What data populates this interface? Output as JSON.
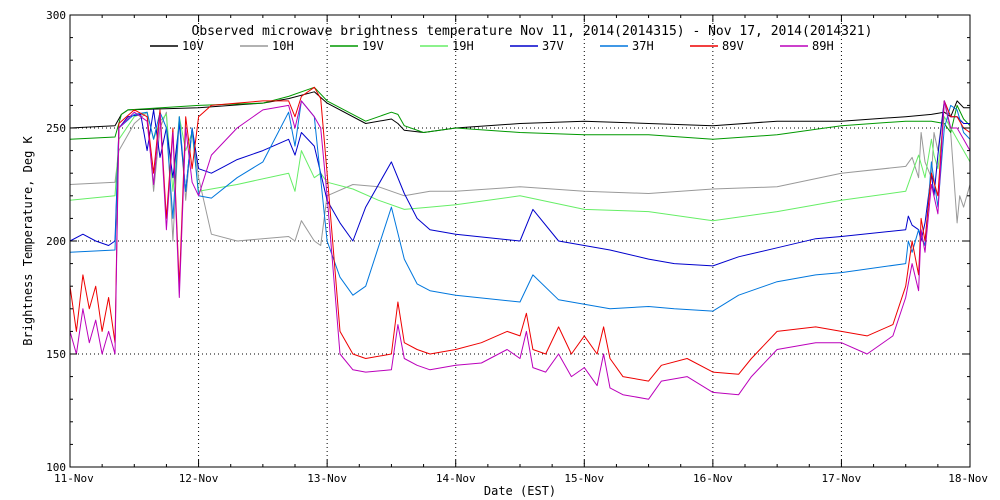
{
  "chart_data": {
    "type": "line",
    "title": "Observed microwave brightness temperature Nov 11, 2014(2014315) - Nov 17, 2014(2014321)",
    "xlabel": "Date (EST)",
    "ylabel": "Brightness Temperature, Deg K",
    "ylim": [
      100,
      300
    ],
    "yticks": [
      "100",
      "150",
      "200",
      "250",
      "300"
    ],
    "xlim": [
      0,
      7
    ],
    "xticks": [
      "11-Nov",
      "12-Nov",
      "13-Nov",
      "14-Nov",
      "15-Nov",
      "16-Nov",
      "17-Nov",
      "18-Nov"
    ],
    "grid": "dotted",
    "legend_position": "top",
    "series": [
      {
        "name": "10V",
        "color": "#000000",
        "x": [
          0,
          0.35,
          0.4,
          0.45,
          1.0,
          1.5,
          1.7,
          1.9,
          2.0,
          2.3,
          2.5,
          2.55,
          2.6,
          2.75,
          3.0,
          3.5,
          4.0,
          4.5,
          5.0,
          5.5,
          6.0,
          6.5,
          6.7,
          6.8,
          6.85,
          6.9,
          6.95,
          7.0
        ],
        "y": [
          250,
          251,
          256,
          258,
          259,
          261,
          263,
          266,
          261,
          252,
          254,
          252,
          249,
          248,
          250,
          252,
          253,
          252,
          251,
          253,
          253,
          255,
          256,
          257,
          255,
          262,
          259,
          259
        ]
      },
      {
        "name": "10H",
        "color": "#999999",
        "x": [
          0,
          0.35,
          0.38,
          0.5,
          0.6,
          0.65,
          0.7,
          0.75,
          0.8,
          0.85,
          0.9,
          0.95,
          1.0,
          1.1,
          1.3,
          1.7,
          1.75,
          1.8,
          1.9,
          1.95,
          2.0,
          2.2,
          2.4,
          2.6,
          2.8,
          3.0,
          3.5,
          4.0,
          4.5,
          5.0,
          5.5,
          6.0,
          6.5,
          6.55,
          6.6,
          6.62,
          6.65,
          6.7,
          6.72,
          6.75,
          6.8,
          6.85,
          6.9,
          6.92,
          6.95,
          7.0
        ],
        "y": [
          225,
          226,
          240,
          252,
          257,
          222,
          250,
          257,
          200,
          255,
          218,
          250,
          228,
          203,
          200,
          202,
          200,
          209,
          200,
          198,
          220,
          225,
          224,
          220,
          222,
          222,
          224,
          222,
          221,
          223,
          224,
          230,
          233,
          237,
          228,
          248,
          235,
          228,
          248,
          240,
          262,
          248,
          208,
          220,
          215,
          225
        ]
      },
      {
        "name": "19V",
        "color": "#009900",
        "x": [
          0,
          0.35,
          0.4,
          0.45,
          1.0,
          1.5,
          1.7,
          1.9,
          2.0,
          2.3,
          2.5,
          2.55,
          2.6,
          2.75,
          3.0,
          3.5,
          4.0,
          4.5,
          5.0,
          5.5,
          6.0,
          6.5,
          6.7,
          6.8,
          6.85,
          6.9,
          6.95,
          7.0
        ],
        "y": [
          245,
          246,
          256,
          258,
          260,
          261,
          264,
          268,
          262,
          253,
          257,
          256,
          251,
          248,
          250,
          248,
          247,
          247,
          245,
          247,
          251,
          253,
          253,
          252,
          248,
          260,
          254,
          251
        ]
      },
      {
        "name": "19H",
        "color": "#66ee66",
        "x": [
          0,
          0.35,
          0.38,
          0.5,
          0.6,
          0.65,
          0.7,
          0.75,
          0.8,
          0.85,
          0.9,
          0.95,
          1.0,
          1.3,
          1.7,
          1.75,
          1.8,
          1.9,
          1.95,
          2.0,
          2.2,
          2.4,
          2.6,
          2.8,
          3.0,
          3.5,
          4.0,
          4.5,
          5.0,
          5.5,
          6.0,
          6.5,
          6.55,
          6.6,
          6.65,
          6.7,
          6.72,
          6.75,
          6.8,
          6.85,
          6.9,
          6.95,
          7.0
        ],
        "y": [
          218,
          220,
          245,
          255,
          257,
          245,
          253,
          256,
          222,
          255,
          240,
          248,
          222,
          225,
          230,
          222,
          240,
          228,
          230,
          226,
          223,
          218,
          214,
          215,
          216,
          220,
          214,
          213,
          209,
          213,
          218,
          222,
          230,
          238,
          228,
          245,
          238,
          232,
          255,
          250,
          245,
          240,
          235
        ]
      },
      {
        "name": "37V",
        "color": "#0000cc",
        "x": [
          0,
          0.1,
          0.2,
          0.3,
          0.35,
          0.38,
          0.45,
          0.55,
          0.6,
          0.65,
          0.7,
          0.75,
          0.8,
          0.85,
          0.9,
          0.95,
          1.0,
          1.1,
          1.2,
          1.3,
          1.5,
          1.7,
          1.75,
          1.8,
          1.9,
          2.0,
          2.1,
          2.2,
          2.3,
          2.5,
          2.6,
          2.7,
          2.8,
          2.9,
          3.0,
          3.5,
          3.6,
          3.8,
          4.0,
          4.2,
          4.5,
          4.7,
          5.0,
          5.2,
          5.5,
          5.8,
          6.0,
          6.5,
          6.52,
          6.55,
          6.6,
          6.62,
          6.65,
          6.7,
          6.72,
          6.75,
          6.8,
          6.85,
          6.9,
          6.95,
          7.0
        ],
        "y": [
          200,
          203,
          200,
          198,
          200,
          250,
          255,
          256,
          240,
          258,
          237,
          250,
          228,
          252,
          222,
          250,
          232,
          230,
          233,
          236,
          240,
          245,
          238,
          248,
          242,
          218,
          208,
          200,
          215,
          235,
          221,
          210,
          205,
          204,
          203,
          200,
          214,
          200,
          198,
          196,
          192,
          190,
          189,
          193,
          197,
          201,
          202,
          205,
          211,
          207,
          205,
          200,
          208,
          230,
          220,
          238,
          262,
          255,
          255,
          252,
          252
        ]
      },
      {
        "name": "37H",
        "color": "#0077dd",
        "x": [
          0,
          0.35,
          0.38,
          0.5,
          0.6,
          0.65,
          0.7,
          0.75,
          0.8,
          0.85,
          0.9,
          0.95,
          1.0,
          1.1,
          1.3,
          1.5,
          1.7,
          1.75,
          1.8,
          1.9,
          2.0,
          2.1,
          2.2,
          2.3,
          2.5,
          2.6,
          2.7,
          2.8,
          3.0,
          3.5,
          3.6,
          3.8,
          4.0,
          4.2,
          4.5,
          4.7,
          5.0,
          5.2,
          5.5,
          5.8,
          6.0,
          6.5,
          6.52,
          6.55,
          6.6,
          6.65,
          6.7,
          6.75,
          6.8,
          6.85,
          6.9,
          6.95,
          7.0
        ],
        "y": [
          195,
          196,
          250,
          256,
          257,
          245,
          257,
          250,
          210,
          255,
          222,
          250,
          220,
          219,
          228,
          235,
          257,
          242,
          262,
          255,
          200,
          184,
          176,
          180,
          215,
          192,
          181,
          178,
          176,
          173,
          185,
          174,
          172,
          170,
          171,
          170,
          169,
          176,
          182,
          185,
          186,
          190,
          200,
          195,
          205,
          198,
          235,
          215,
          250,
          260,
          258,
          248,
          245
        ]
      },
      {
        "name": "89V",
        "color": "#ee0000",
        "x": [
          0,
          0.05,
          0.1,
          0.15,
          0.2,
          0.25,
          0.3,
          0.35,
          0.38,
          0.5,
          0.6,
          0.65,
          0.7,
          0.75,
          0.8,
          0.85,
          0.9,
          0.95,
          1.0,
          1.1,
          1.3,
          1.5,
          1.7,
          1.75,
          1.8,
          1.9,
          1.95,
          2.0,
          2.1,
          2.2,
          2.3,
          2.5,
          2.55,
          2.6,
          2.7,
          2.8,
          3.0,
          3.2,
          3.4,
          3.5,
          3.55,
          3.6,
          3.7,
          3.8,
          3.9,
          4.0,
          4.1,
          4.15,
          4.2,
          4.3,
          4.5,
          4.6,
          4.8,
          5.0,
          5.2,
          5.3,
          5.5,
          5.8,
          6.0,
          6.2,
          6.4,
          6.5,
          6.55,
          6.6,
          6.62,
          6.65,
          6.7,
          6.75,
          6.8,
          6.85,
          6.9,
          6.95,
          7.0
        ],
        "y": [
          180,
          160,
          185,
          170,
          180,
          160,
          175,
          155,
          252,
          258,
          255,
          230,
          258,
          210,
          250,
          180,
          255,
          232,
          255,
          260,
          261,
          262,
          262,
          255,
          264,
          268,
          263,
          230,
          160,
          150,
          148,
          150,
          173,
          155,
          152,
          150,
          152,
          155,
          160,
          158,
          168,
          152,
          150,
          162,
          150,
          158,
          150,
          162,
          148,
          140,
          138,
          145,
          148,
          142,
          141,
          148,
          160,
          162,
          160,
          158,
          163,
          180,
          200,
          185,
          210,
          200,
          230,
          220,
          262,
          255,
          255,
          250,
          248
        ]
      },
      {
        "name": "89H",
        "color": "#bb00bb",
        "x": [
          0,
          0.05,
          0.1,
          0.15,
          0.2,
          0.25,
          0.3,
          0.35,
          0.38,
          0.5,
          0.6,
          0.65,
          0.7,
          0.75,
          0.8,
          0.85,
          0.9,
          0.95,
          1.0,
          1.1,
          1.3,
          1.5,
          1.7,
          1.75,
          1.8,
          1.9,
          1.95,
          2.0,
          2.1,
          2.2,
          2.3,
          2.5,
          2.55,
          2.6,
          2.7,
          2.8,
          3.0,
          3.2,
          3.4,
          3.5,
          3.55,
          3.6,
          3.7,
          3.8,
          3.9,
          4.0,
          4.1,
          4.15,
          4.2,
          4.3,
          4.5,
          4.6,
          4.8,
          5.0,
          5.2,
          5.3,
          5.5,
          5.8,
          6.0,
          6.2,
          6.4,
          6.5,
          6.55,
          6.6,
          6.62,
          6.65,
          6.7,
          6.75,
          6.8,
          6.85,
          6.9,
          6.95,
          7.0
        ],
        "y": [
          160,
          150,
          170,
          155,
          165,
          150,
          160,
          150,
          250,
          257,
          253,
          225,
          256,
          205,
          248,
          175,
          250,
          226,
          220,
          238,
          250,
          258,
          260,
          250,
          262,
          255,
          250,
          220,
          150,
          143,
          142,
          143,
          163,
          148,
          145,
          143,
          145,
          146,
          152,
          148,
          160,
          144,
          142,
          150,
          140,
          144,
          136,
          150,
          135,
          132,
          130,
          138,
          140,
          133,
          132,
          140,
          152,
          155,
          155,
          150,
          158,
          175,
          190,
          178,
          205,
          195,
          225,
          212,
          262,
          250,
          250,
          245,
          240
        ]
      }
    ]
  }
}
